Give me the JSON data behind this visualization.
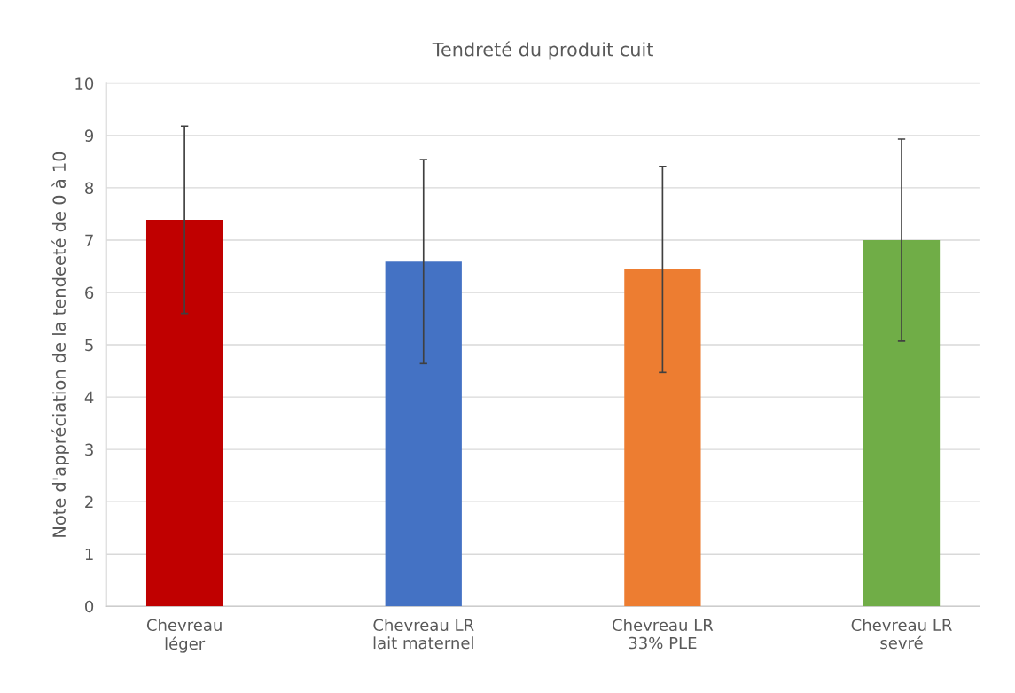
{
  "chart_data": {
    "type": "bar",
    "title": "Tendreté du produit cuit",
    "ylabel": "Note d'appréciation de la tendeeté de 0 à 10",
    "categories": [
      "Chevreau\nléger",
      "Chevreau LR\nlait maternel",
      "Chevreau LR\n33% PLE",
      "Chevreau LR\nsevré"
    ],
    "values": [
      7.39,
      6.59,
      6.44,
      7.0
    ],
    "errors": [
      1.79,
      1.95,
      1.97,
      1.93
    ],
    "colors": [
      "#c00000",
      "#4472c4",
      "#ed7d31",
      "#70ad47"
    ],
    "ylim": [
      0,
      10
    ],
    "yticks": [
      0,
      1,
      2,
      3,
      4,
      5,
      6,
      7,
      8,
      9,
      10
    ],
    "grid": "y",
    "legend": false
  }
}
